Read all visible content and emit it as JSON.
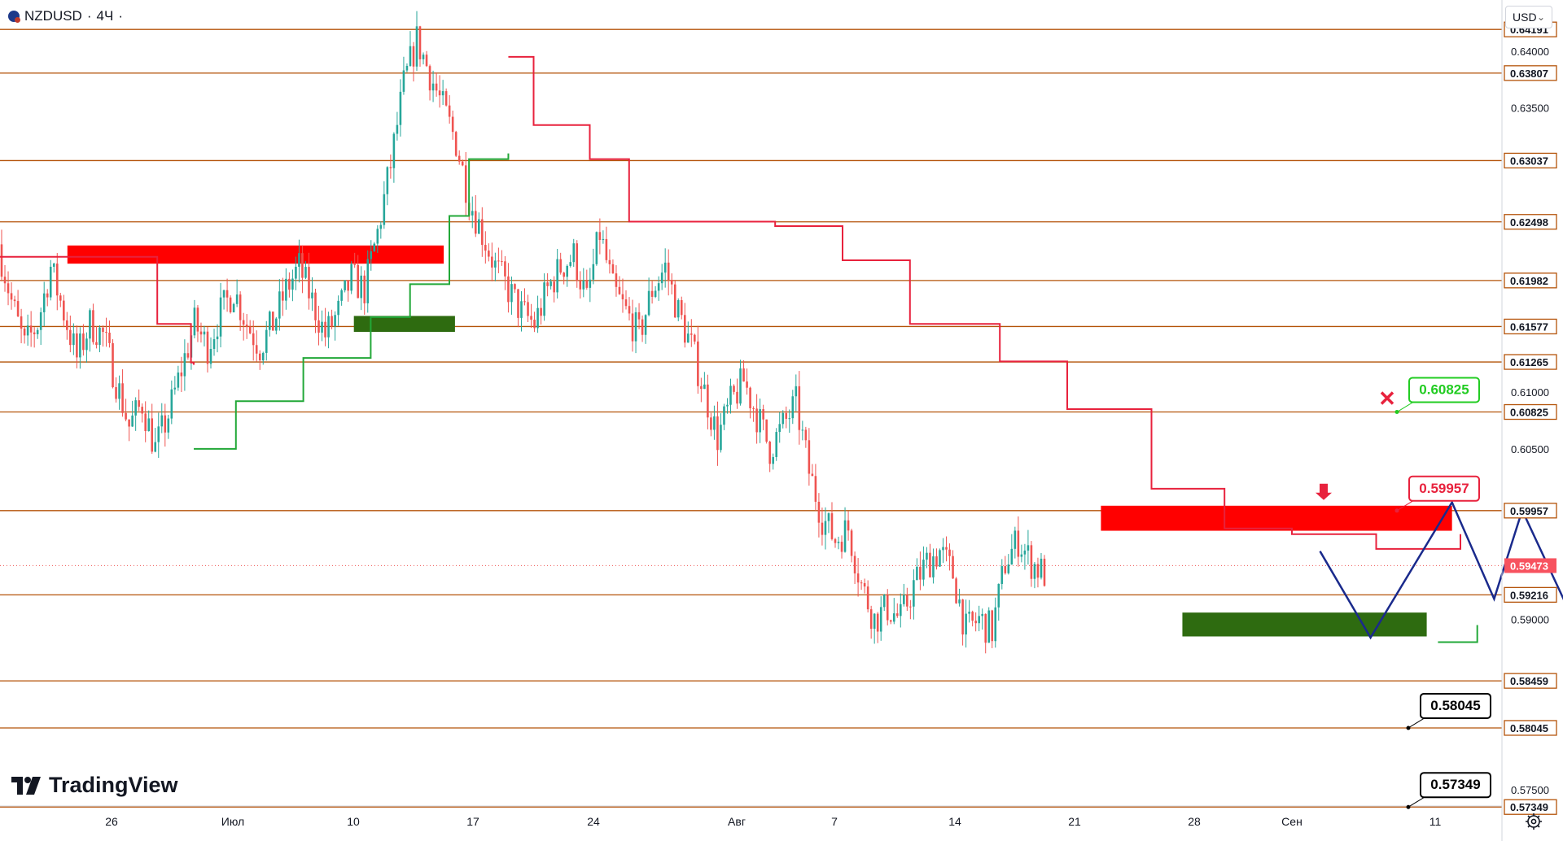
{
  "symbol": {
    "name": "NZDUSD",
    "sep": "·",
    "interval": "4Ч",
    "dot": "·"
  },
  "currency": {
    "label": "USD",
    "chevron": "⌄"
  },
  "brand": {
    "name": "TradingView"
  },
  "settings_icon": "gear-icon",
  "colors": {
    "level_line": "#b45309",
    "up_candle": "#26a69a",
    "down_candle": "#ef5350",
    "supertrend_down": "#e8223d",
    "supertrend_up": "#22a838",
    "zone_red": "#ff0000",
    "zone_green": "#2e6b10",
    "forecast": "#1a2a8c",
    "green_label": "#22cc22",
    "red_label": "#e8223d"
  },
  "chart_data": {
    "type": "candlestick",
    "ylim": [
      0.5705,
      0.6445
    ],
    "x_ticks": [
      "26",
      "Июл",
      "10",
      "17",
      "24",
      "Авг",
      "7",
      "14",
      "21",
      "28",
      "Сен",
      "11"
    ],
    "y_ticks": [
      "0.64000",
      "0.63500",
      "0.61000",
      "0.60500",
      "0.59000",
      "0.57500"
    ],
    "levels": [
      0.64191,
      0.63807,
      0.63037,
      0.62498,
      0.61982,
      0.61577,
      0.61265,
      0.60825,
      0.59957,
      0.59216,
      0.58459,
      0.58045,
      0.57349
    ],
    "level_labels": [
      "0.64191",
      "0.63807",
      "0.63037",
      "0.62498",
      "0.61982",
      "0.61577",
      "0.61265",
      "0.60825",
      "0.59957",
      "0.59216",
      "0.58459",
      "0.58045",
      "0.57349"
    ],
    "last_price": {
      "value": 0.59473,
      "label": "0.59473"
    },
    "candles_path": [
      0.623,
      0.618,
      0.614,
      0.616,
      0.621,
      0.617,
      0.613,
      0.616,
      0.615,
      0.611,
      0.607,
      0.609,
      0.605,
      0.608,
      0.612,
      0.616,
      0.614,
      0.617,
      0.619,
      0.616,
      0.614,
      0.616,
      0.619,
      0.621,
      0.618,
      0.615,
      0.617,
      0.62,
      0.619,
      0.624,
      0.63,
      0.637,
      0.641,
      0.638,
      0.635,
      0.632,
      0.627,
      0.624,
      0.621,
      0.619,
      0.617,
      0.616,
      0.619,
      0.621,
      0.622,
      0.618,
      0.624,
      0.619,
      0.617,
      0.615,
      0.619,
      0.621,
      0.617,
      0.614,
      0.61,
      0.606,
      0.609,
      0.611,
      0.608,
      0.605,
      0.607,
      0.609,
      0.603,
      0.599,
      0.597,
      0.598,
      0.593,
      0.59,
      0.591,
      0.59,
      0.593,
      0.595,
      0.596,
      0.594,
      0.589,
      0.59,
      0.589,
      0.595,
      0.597,
      0.595,
      0.594
    ],
    "supertrend": {
      "down_segments": [
        [
          [
            0.0,
            0.6219
          ],
          [
            0.16,
            0.6219
          ],
          [
            0.28,
            0.616
          ],
          [
            0.34,
            0.6126
          ],
          [
            0.345,
            0.6124
          ]
        ],
        [
          [
            0.905,
            0.6395
          ],
          [
            0.95,
            0.6335
          ],
          [
            1.05,
            0.6305
          ],
          [
            1.12,
            0.625
          ],
          [
            1.38,
            0.6246
          ],
          [
            1.5,
            0.6216
          ],
          [
            1.62,
            0.616
          ],
          [
            1.78,
            0.6127
          ],
          [
            1.9,
            0.6085
          ],
          [
            2.05,
            0.6015
          ],
          [
            2.18,
            0.598
          ],
          [
            2.3,
            0.5975
          ],
          [
            2.45,
            0.5962
          ],
          [
            2.6,
            0.5975
          ]
        ]
      ],
      "up_segments": [
        [
          [
            0.345,
            0.605
          ],
          [
            0.42,
            0.6092
          ],
          [
            0.54,
            0.613
          ],
          [
            0.66,
            0.6166
          ],
          [
            0.73,
            0.6195
          ],
          [
            0.8,
            0.6255
          ],
          [
            0.835,
            0.6305
          ],
          [
            0.905,
            0.631
          ]
        ],
        [
          [
            2.56,
            0.588
          ],
          [
            2.63,
            0.5895
          ]
        ]
      ]
    },
    "zones": [
      {
        "kind": "resistance",
        "x": [
          0.12,
          0.79
        ],
        "y": [
          0.6213,
          0.6229
        ]
      },
      {
        "kind": "support",
        "x": [
          0.63,
          0.81
        ],
        "y": [
          0.6153,
          0.6167
        ]
      },
      {
        "kind": "resistance",
        "x": [
          1.96,
          2.585
        ],
        "y": [
          0.5978,
          0.6
        ]
      },
      {
        "kind": "support",
        "x": [
          2.105,
          2.54
        ],
        "y": [
          0.5885,
          0.5906
        ]
      }
    ],
    "forecast_path": [
      [
        2.35,
        0.596
      ],
      [
        2.44,
        0.5884
      ],
      [
        2.585,
        0.6003
      ],
      [
        2.66,
        0.5918
      ],
      [
        2.71,
        0.5996
      ],
      [
        2.89,
        0.5805
      ]
    ],
    "callouts": [
      {
        "label": "0.60825",
        "value": 0.60825,
        "style": "green"
      },
      {
        "label": "0.59957",
        "value": 0.59957,
        "style": "red"
      },
      {
        "label": "0.58045",
        "value": 0.58045,
        "style": "black"
      },
      {
        "label": "0.57349",
        "value": 0.57349,
        "style": "black"
      }
    ],
    "markers": [
      {
        "kind": "cancel-x",
        "value": 0.60825
      },
      {
        "kind": "down-arrow",
        "value": 0.6005
      }
    ]
  }
}
